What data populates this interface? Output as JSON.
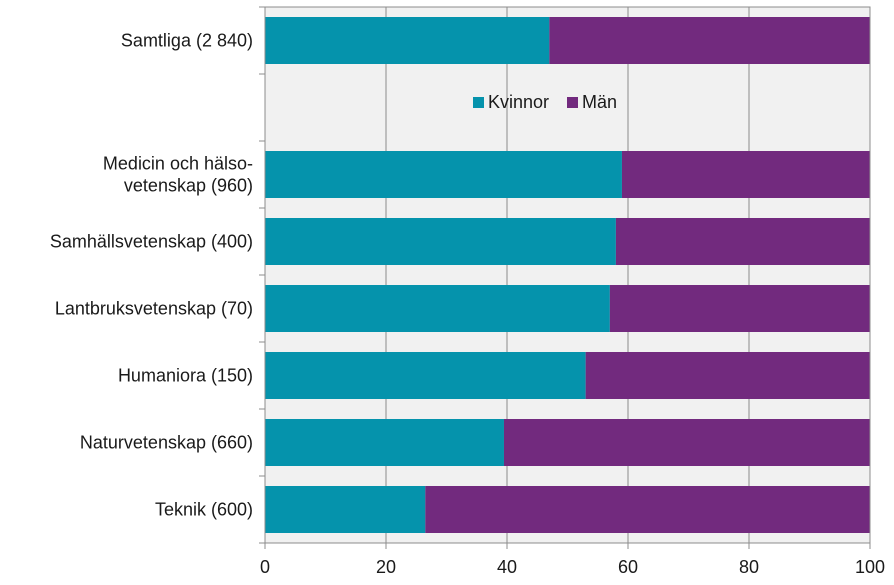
{
  "chart_data": {
    "type": "bar",
    "orientation": "horizontal",
    "stacked": true,
    "categories": [
      [
        "Samtliga (2 840)"
      ],
      [],
      [
        "Medicin och hälso-",
        "vetenskap (960)"
      ],
      [
        "Samhällsvetenskap (400)"
      ],
      [
        "Lantbruksvetenskap (70)"
      ],
      [
        "Humaniora (150)"
      ],
      [
        "Naturvetenskap (660)"
      ],
      [
        "Teknik (600)"
      ]
    ],
    "series": [
      {
        "name": "Kvinnor",
        "color": "#0593ac",
        "values": [
          47,
          null,
          59,
          58,
          57,
          53,
          39.5,
          26.5
        ]
      },
      {
        "name": "Män",
        "color": "#722a7e",
        "values": [
          53,
          null,
          41,
          42,
          43,
          47,
          60.5,
          73.5
        ]
      }
    ],
    "xlim": [
      0,
      100
    ],
    "xticks": [
      "0",
      "20",
      "40",
      "60",
      "80",
      "100"
    ],
    "grid": true,
    "legend_position": "top-center, inside plot"
  }
}
